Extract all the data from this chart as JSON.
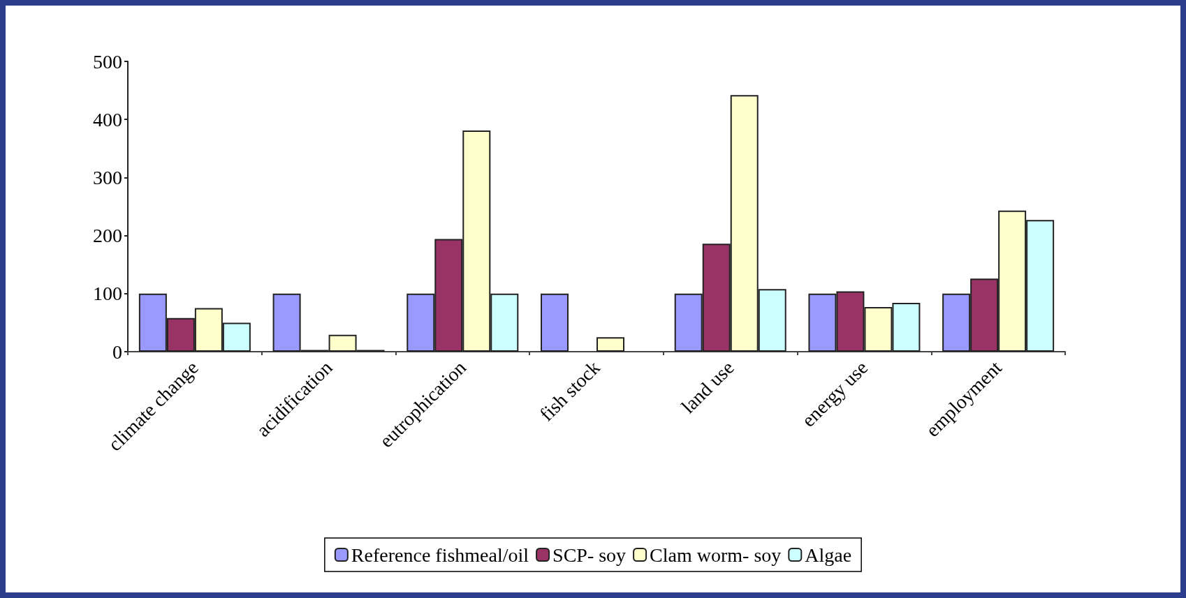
{
  "chart_data": {
    "type": "bar",
    "categories": [
      "climate change",
      "acidification",
      "eutrophication",
      "fish stock",
      "land use",
      "energy use",
      "employment"
    ],
    "series": [
      {
        "name": "Reference fishmeal/oil",
        "color": "#9999ff",
        "values": [
          100,
          100,
          100,
          100,
          100,
          100,
          100
        ]
      },
      {
        "name": "SCP- soy",
        "color": "#993366",
        "values": [
          58,
          3,
          194,
          null,
          186,
          104,
          126
        ]
      },
      {
        "name": "Clam worm- soy",
        "color": "#ffffcc",
        "values": [
          75,
          29,
          381,
          25,
          442,
          77,
          243
        ]
      },
      {
        "name": "Algae",
        "color": "#ccffff",
        "values": [
          50,
          3,
          100,
          null,
          108,
          84,
          227
        ]
      }
    ],
    "ylim": [
      0,
      500
    ],
    "yticks": [
      0,
      100,
      200,
      300,
      400,
      500
    ],
    "grid": false,
    "legend": "bottom"
  }
}
